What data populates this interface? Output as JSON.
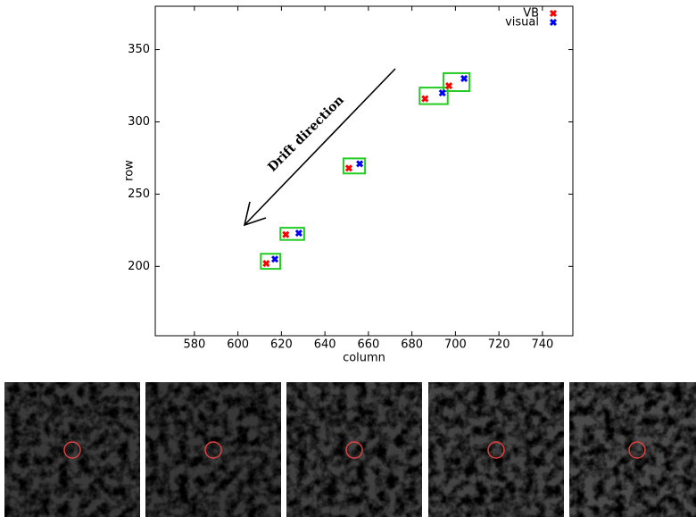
{
  "chart_data": {
    "type": "scatter",
    "xlabel": "column",
    "ylabel": "row",
    "annotation": "Drift direction",
    "xlim": [
      562,
      754
    ],
    "ylim": [
      152,
      380
    ],
    "xticks": [
      580,
      600,
      620,
      640,
      660,
      680,
      700,
      720,
      740
    ],
    "yticks": [
      200,
      250,
      300,
      350
    ],
    "legend": "upper right",
    "series": [
      {
        "name": "VB",
        "color": "#ff0000",
        "x": [
          613,
          622,
          651,
          686,
          697
        ],
        "values": [
          202,
          222,
          268,
          316,
          325
        ]
      },
      {
        "name": "visual",
        "color": "#0000ff",
        "x": [
          617,
          628,
          656,
          694,
          704
        ],
        "values": [
          205,
          223,
          271,
          320,
          330
        ]
      }
    ]
  }
}
